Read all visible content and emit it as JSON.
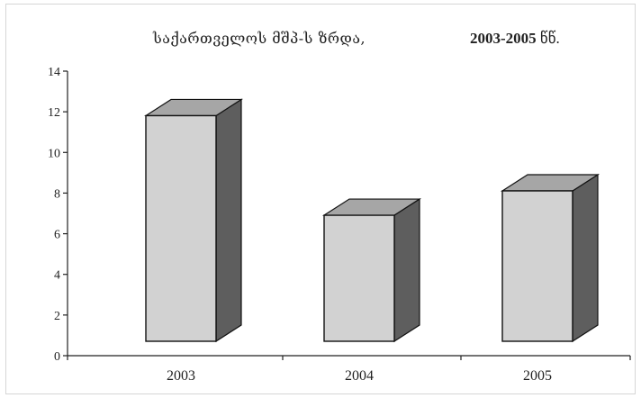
{
  "colors": {
    "bar_front": "#d2d2d2",
    "bar_top": "#a6a6a6",
    "bar_side": "#5e5e5e",
    "stroke": "#111111",
    "axis": "#222222"
  },
  "chart_data": {
    "type": "bar",
    "style": "3d-columns",
    "title": "საქართველოს მშპ-ს ზრდა,",
    "title_years": "2003-2005",
    "title_unit": "წწ.",
    "categories": [
      "2003",
      "2004",
      "2005"
    ],
    "values": [
      11.1,
      6.2,
      7.4
    ],
    "ylim": [
      0,
      14
    ],
    "yticks": [
      0,
      2,
      4,
      6,
      8,
      10,
      12,
      14
    ],
    "xlabel": "",
    "ylabel": "",
    "grid": false,
    "legend": "none"
  }
}
